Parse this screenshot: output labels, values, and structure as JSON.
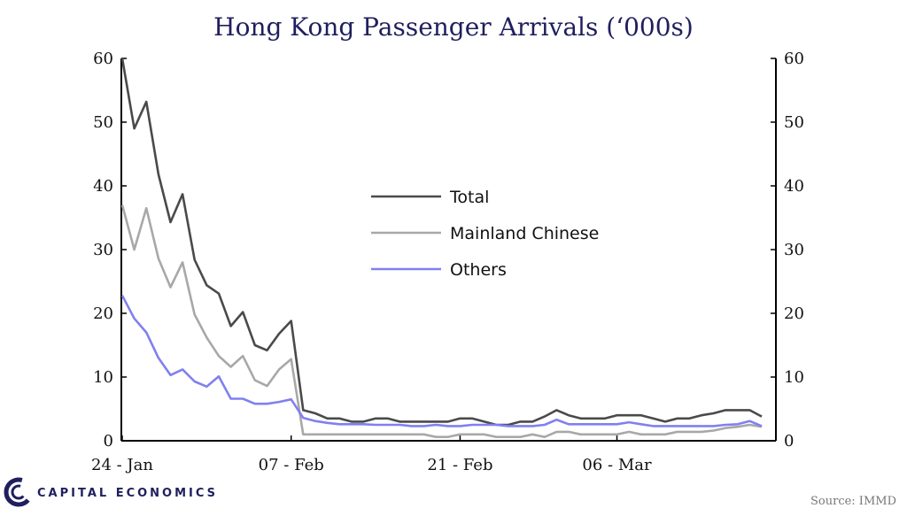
{
  "chart_data": {
    "type": "line",
    "title": "Hong Kong Passenger Arrivals (‘000s)",
    "xlabel": "",
    "ylabel": "",
    "ylim": [
      0,
      60
    ],
    "yticks": [
      "0",
      "10",
      "20",
      "30",
      "40",
      "50",
      "60"
    ],
    "xtick_labels": [
      "24 - Jan",
      "07 - Feb",
      "21 - Feb",
      "06 - Mar"
    ],
    "xtick_index": [
      0,
      14,
      28,
      41
    ],
    "x": [
      "24-Jan",
      "25-Jan",
      "26-Jan",
      "27-Jan",
      "28-Jan",
      "29-Jan",
      "30-Jan",
      "31-Jan",
      "01-Feb",
      "02-Feb",
      "03-Feb",
      "04-Feb",
      "05-Feb",
      "06-Feb",
      "07-Feb",
      "08-Feb",
      "09-Feb",
      "10-Feb",
      "11-Feb",
      "12-Feb",
      "13-Feb",
      "14-Feb",
      "15-Feb",
      "16-Feb",
      "17-Feb",
      "18-Feb",
      "19-Feb",
      "20-Feb",
      "21-Feb",
      "22-Feb",
      "23-Feb",
      "24-Feb",
      "25-Feb",
      "26-Feb",
      "27-Feb",
      "28-Feb",
      "29-Feb",
      "01-Mar",
      "02-Mar",
      "03-Mar",
      "04-Mar",
      "05-Mar",
      "06-Mar",
      "07-Mar",
      "08-Mar",
      "09-Mar",
      "10-Mar",
      "11-Mar",
      "12-Mar",
      "13-Mar",
      "14-Mar",
      "15-Mar",
      "16-Mar",
      "17-Mar"
    ],
    "grid": false,
    "legend_position": "center",
    "series": [
      {
        "name": "Total",
        "color": "#4a4a4a",
        "values": [
          60,
          49,
          53.2,
          41.8,
          34.3,
          38.7,
          28.4,
          24.4,
          23.1,
          18,
          20.2,
          15,
          14.2,
          16.8,
          18.8,
          4.8,
          4.3,
          3.5,
          3.5,
          3.0,
          3.0,
          3.5,
          3.5,
          3.0,
          3.0,
          3.0,
          3.0,
          3.0,
          3.5,
          3.5,
          3.0,
          2.5,
          2.5,
          3.0,
          3.0,
          3.8,
          4.8,
          4.0,
          3.5,
          3.5,
          3.5,
          4.0,
          4.0,
          4.0,
          3.5,
          3.0,
          3.5,
          3.5,
          4.0,
          4.3,
          4.8,
          4.8,
          4.8,
          3.8
        ]
      },
      {
        "name": "Mainland Chinese",
        "color": "#a8a8a8",
        "values": [
          37,
          30,
          36.5,
          28.6,
          24.1,
          28,
          19.8,
          16.2,
          13.3,
          11.6,
          13.3,
          9.5,
          8.6,
          11.2,
          12.8,
          1,
          1,
          1,
          1,
          1,
          1,
          1,
          1,
          1,
          1,
          1,
          0.6,
          0.6,
          1,
          1,
          1,
          0.6,
          0.6,
          0.6,
          1,
          0.6,
          1.4,
          1.4,
          1,
          1,
          1,
          1,
          1.4,
          1,
          1,
          1,
          1.4,
          1.4,
          1.4,
          1.6,
          2.0,
          2.2,
          2.5,
          2.2
        ]
      },
      {
        "name": "Others",
        "color": "#8080f0",
        "values": [
          22.8,
          19.2,
          17,
          13,
          10.3,
          11.2,
          9.3,
          8.5,
          10.1,
          6.6,
          6.6,
          5.8,
          5.8,
          6.1,
          6.5,
          3.6,
          3.1,
          2.8,
          2.6,
          2.6,
          2.6,
          2.5,
          2.5,
          2.5,
          2.3,
          2.3,
          2.5,
          2.3,
          2.3,
          2.5,
          2.5,
          2.5,
          2.3,
          2.3,
          2.3,
          2.5,
          3.3,
          2.6,
          2.6,
          2.6,
          2.6,
          2.6,
          2.9,
          2.6,
          2.3,
          2.3,
          2.3,
          2.3,
          2.3,
          2.3,
          2.5,
          2.6,
          3.1,
          2.3
        ]
      }
    ]
  },
  "source": "Source: IMMD",
  "logo": {
    "text": "CAPITAL ECONOMICS",
    "color": "#1f1f5e"
  }
}
